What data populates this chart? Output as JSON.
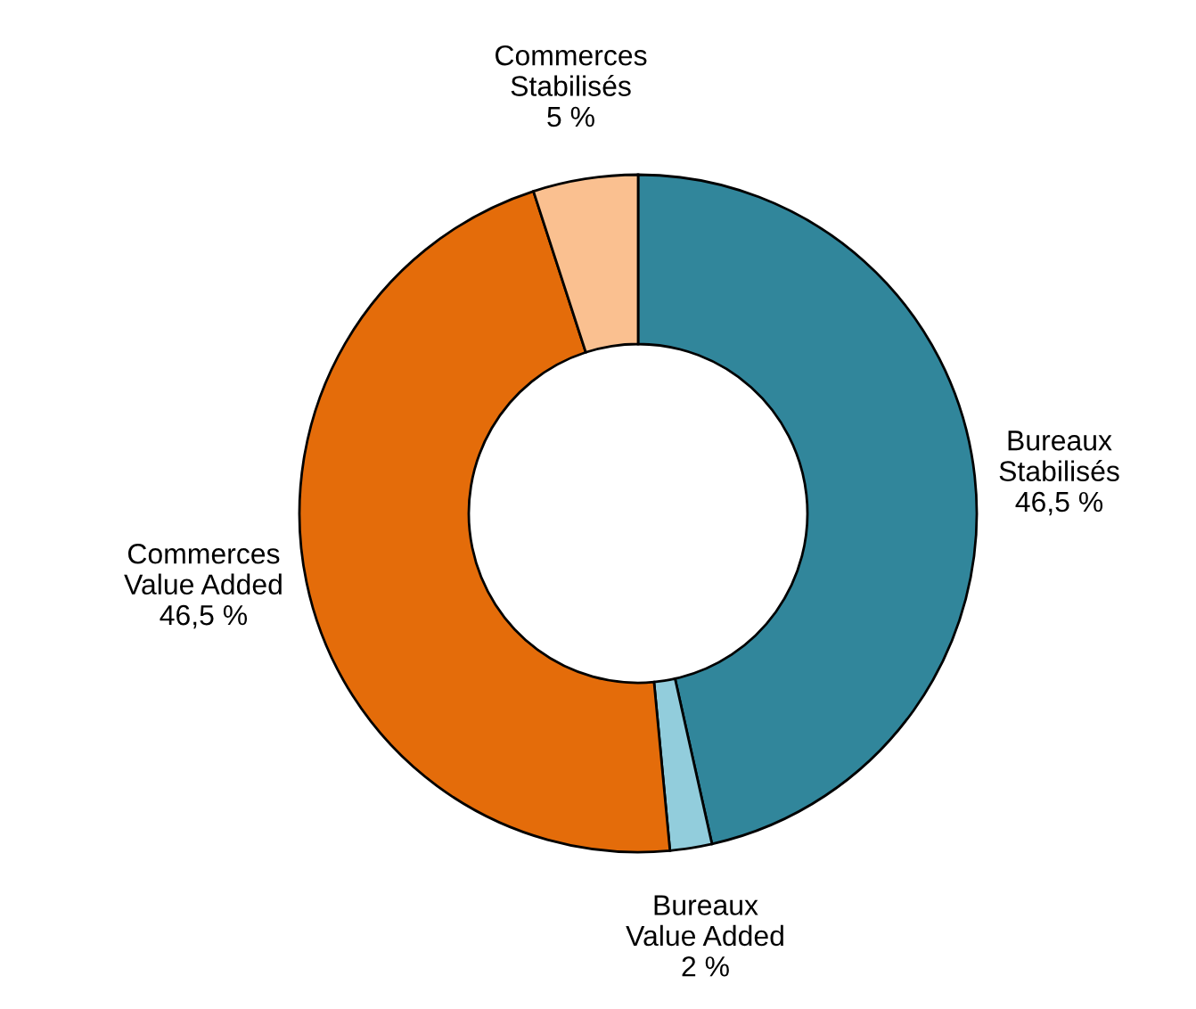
{
  "chart_data": {
    "type": "donut",
    "categories": [
      "Bureaux\nStabilisés",
      "Bureaux\nValue Added",
      "Commerces\nValue Added",
      "Commerces\nStabilisés"
    ],
    "values": [
      46.5,
      2,
      46.5,
      5
    ],
    "colors": [
      "#31869b",
      "#92cddc",
      "#e46c0a",
      "#fac090"
    ],
    "value_labels": [
      "46,5 %",
      "2 %",
      "46,5 %",
      "5 %"
    ]
  }
}
